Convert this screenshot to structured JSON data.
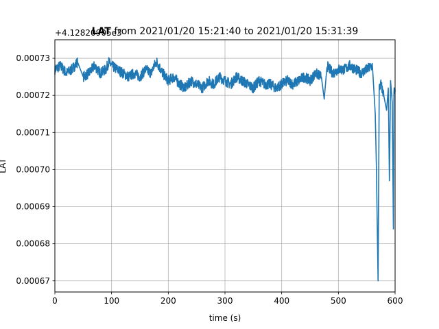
{
  "chart_data": {
    "type": "line",
    "title_bold": "LAT",
    "title": "from 2021/01/20 15:21:40 to 2021/01/20 15:31:39",
    "xlabel": "time (s)",
    "ylabel": "LAT",
    "offset_text": "+4.12820905e3",
    "xlim": [
      0,
      600
    ],
    "ylim": [
      0.000667,
      0.000735
    ],
    "x_ticks": [
      0,
      100,
      200,
      300,
      400,
      500,
      600
    ],
    "x_tick_labels": [
      "0",
      "100",
      "200",
      "300",
      "400",
      "500",
      "600"
    ],
    "y_ticks": [
      0.00067,
      0.00068,
      0.00069,
      0.0007,
      0.00071,
      0.00072,
      0.00073
    ],
    "y_tick_labels": [
      "0.00067",
      "0.00068",
      "0.00069",
      "0.00070",
      "0.00071",
      "0.00072",
      "0.00073"
    ],
    "grid": true,
    "color": "#1f77b4",
    "series": [
      {
        "x": [
          0,
          10,
          20,
          30,
          40,
          50,
          60,
          70,
          80,
          90,
          95,
          100,
          110,
          120,
          130,
          140,
          150,
          160,
          170,
          175,
          180,
          190,
          200,
          210,
          220,
          230,
          240,
          250,
          260,
          270,
          280,
          290,
          300,
          310,
          320,
          330,
          340,
          350,
          360,
          370,
          380,
          390,
          400,
          410,
          420,
          430,
          440,
          450,
          460,
          470,
          475,
          480,
          490,
          500,
          510,
          520,
          530,
          540,
          550,
          560,
          565,
          567,
          569,
          570,
          572,
          575,
          580,
          585,
          588,
          590,
          592,
          595,
          597,
          598,
          600
        ],
        "y": [
          0.000727,
          0.000728,
          0.000726,
          0.000727,
          0.000729,
          0.000725,
          0.000726,
          0.000728,
          0.000726,
          0.000727,
          0.000729,
          0.000728,
          0.000727,
          0.000726,
          0.000725,
          0.000726,
          0.000725,
          0.000727,
          0.000726,
          0.000728,
          0.000729,
          0.000726,
          0.000724,
          0.000725,
          0.000723,
          0.000722,
          0.000724,
          0.000723,
          0.000722,
          0.000724,
          0.000723,
          0.000725,
          0.000724,
          0.000723,
          0.000725,
          0.000724,
          0.000723,
          0.000722,
          0.000724,
          0.000723,
          0.000723,
          0.000722,
          0.000723,
          0.000724,
          0.000723,
          0.000724,
          0.000725,
          0.000724,
          0.000726,
          0.000725,
          0.000719,
          0.000728,
          0.000726,
          0.000727,
          0.000727,
          0.000728,
          0.000727,
          0.000726,
          0.000727,
          0.000728,
          0.000715,
          0.000701,
          0.00068,
          0.00067,
          0.000722,
          0.000723,
          0.00072,
          0.000716,
          0.000722,
          0.000697,
          0.000724,
          0.000718,
          0.000684,
          0.000722,
          0.000721
        ]
      }
    ]
  }
}
